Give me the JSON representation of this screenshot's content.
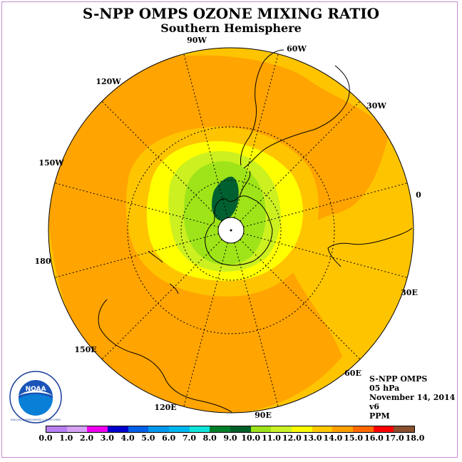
{
  "title": "S-NPP OMPS OZONE MIXING RATIO",
  "subtitle": "Southern Hemisphere",
  "longitude_labels": [
    "90W",
    "60W",
    "30W",
    "0",
    "30E",
    "60E",
    "90E",
    "120E",
    "150E",
    "180",
    "150W",
    "120W"
  ],
  "info": {
    "instrument": "S-NPP OMPS",
    "level": "05 hPa",
    "date": "November 14, 2014",
    "version": "v6",
    "units": "PPM"
  },
  "logo": {
    "text": "NOAA",
    "ring_text": "NATIONAL OCEANIC AND ATMOSPHERIC ADMINISTRATION · U.S. DEPARTMENT OF COMMERCE"
  },
  "colorbar": {
    "ticks": [
      "0.0",
      "1.0",
      "2.0",
      "3.0",
      "4.0",
      "5.0",
      "6.0",
      "7.0",
      "8.0",
      "9.0",
      "10.0",
      "11.0",
      "12.0",
      "13.0",
      "14.0",
      "15.0",
      "16.0",
      "17.0",
      "18.0"
    ],
    "colors": [
      "#b77ff0",
      "#d6a2f3",
      "#ee00ee",
      "#0000cc",
      "#0060e8",
      "#0099f0",
      "#00b8f0",
      "#10e4d8",
      "#007f2a",
      "#005f28",
      "#9de21a",
      "#caf028",
      "#fafa00",
      "#ffc800",
      "#ffa000",
      "#ff6a00",
      "#ff0000",
      "#8a5030"
    ]
  },
  "map_colors": {
    "outer": "#ffc400",
    "band_14_15": "#ffa400",
    "band_13_14": "#ffc400",
    "band_12_13": "#ffff00",
    "band_11_12": "#ccf020",
    "band_10_11": "#9ee418",
    "band_9_10": "#006030",
    "pole": "#ffffff"
  }
}
